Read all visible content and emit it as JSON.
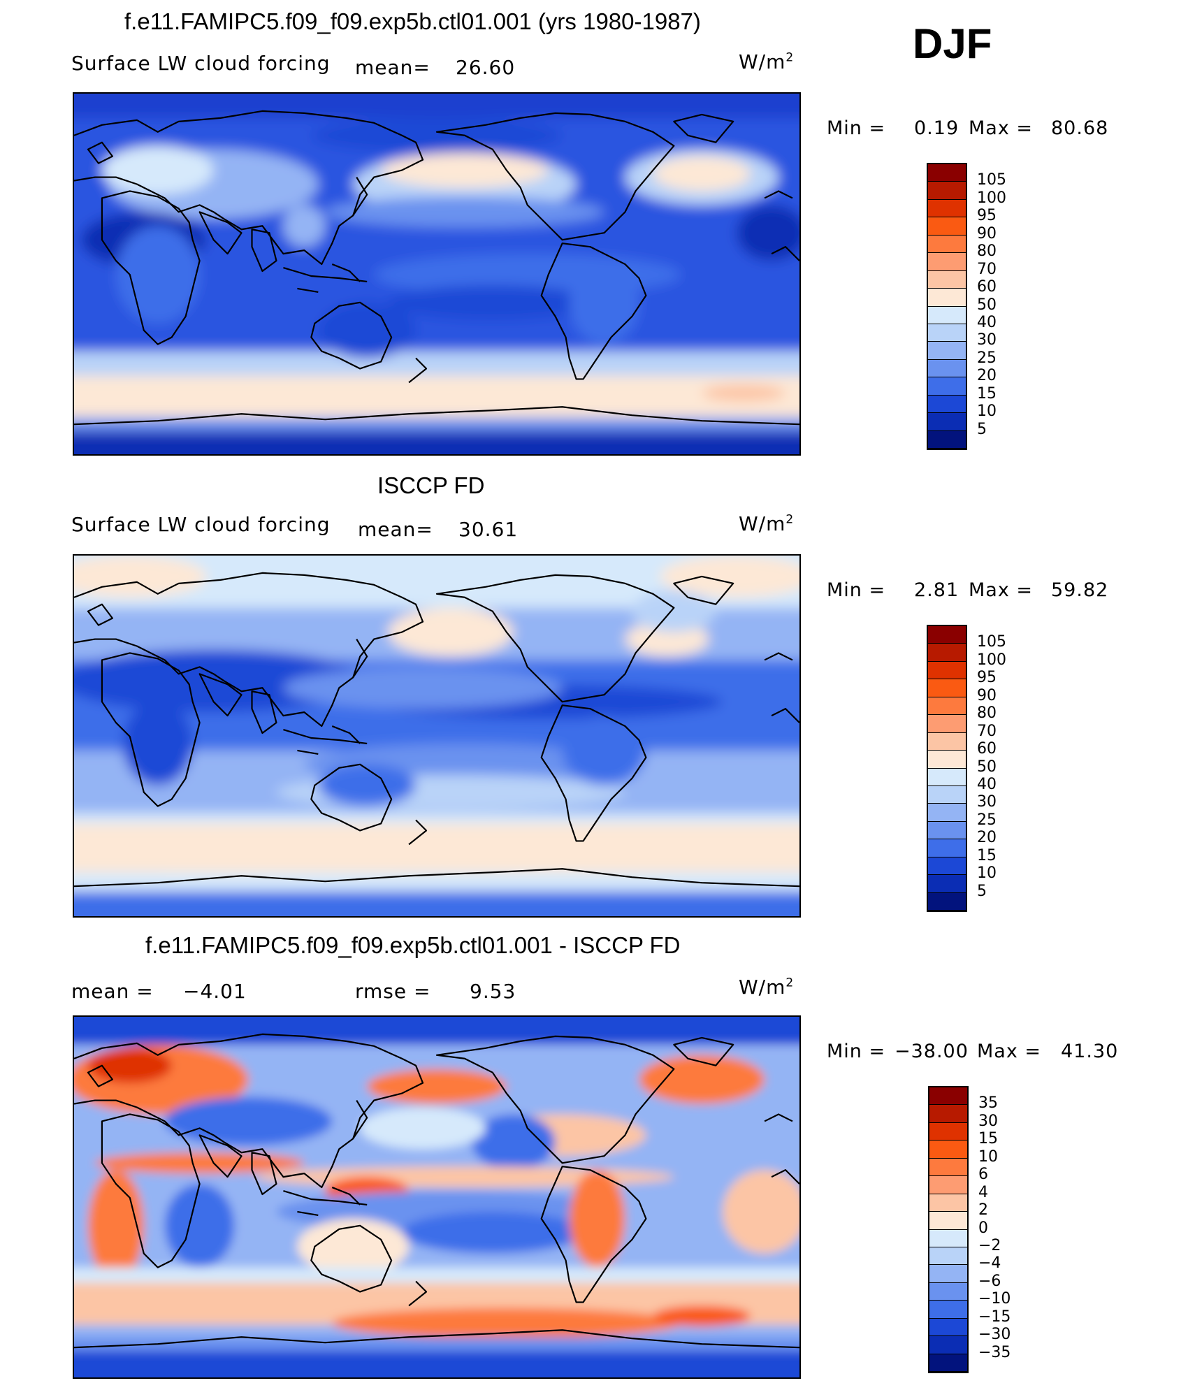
{
  "header": {
    "season": "DJF"
  },
  "panels": [
    {
      "title": "f.e11.FAMIPC5.f09_f09.exp5b.ctl01.001 (yrs 1980-1987)",
      "variable": "Surface LW cloud forcing",
      "mean_label": "mean=",
      "mean_value": "26.60",
      "units_base": "W/m",
      "units_exp": "2",
      "min_label": "Min  =",
      "min_value": "0.19",
      "max_label": "Max  =",
      "max_value": "80.68",
      "colorbar_levels": [
        "105",
        "100",
        "95",
        "90",
        "80",
        "70",
        "60",
        "50",
        "40",
        "30",
        "25",
        "20",
        "15",
        "10",
        "5"
      ],
      "colorbar_colors": [
        "#8a0000",
        "#b71a00",
        "#df3200",
        "#fa5a12",
        "#fd7a3e",
        "#fd9c72",
        "#fcc5a5",
        "#fde8d6",
        "#d6e9fb",
        "#b9d3f8",
        "#94b4f4",
        "#6a92ef",
        "#3e6ee9",
        "#1c48d6",
        "#0b2db4",
        "#02137d"
      ]
    },
    {
      "title": "ISCCP FD",
      "variable": "Surface LW cloud forcing",
      "mean_label": "mean=",
      "mean_value": "30.61",
      "units_base": "W/m",
      "units_exp": "2",
      "min_label": "Min  =",
      "min_value": "2.81",
      "max_label": "Max  =",
      "max_value": "59.82",
      "colorbar_levels": [
        "105",
        "100",
        "95",
        "90",
        "80",
        "70",
        "60",
        "50",
        "40",
        "30",
        "25",
        "20",
        "15",
        "10",
        "5"
      ],
      "colorbar_colors": [
        "#8a0000",
        "#b71a00",
        "#df3200",
        "#fa5a12",
        "#fd7a3e",
        "#fd9c72",
        "#fcc5a5",
        "#fde8d6",
        "#d6e9fb",
        "#b9d3f8",
        "#94b4f4",
        "#6a92ef",
        "#3e6ee9",
        "#1c48d6",
        "#0b2db4",
        "#02137d"
      ]
    },
    {
      "title": "f.e11.FAMIPC5.f09_f09.exp5b.ctl01.001 - ISCCP FD",
      "mean_label": "mean  =",
      "mean_value": "−4.01",
      "rmse_label": "rmse  =",
      "rmse_value": "9.53",
      "units_base": "W/m",
      "units_exp": "2",
      "min_label": "Min  =",
      "min_value": "−38.00",
      "max_label": "Max  =",
      "max_value": "41.30",
      "colorbar_levels": [
        "35",
        "30",
        "15",
        "10",
        "6",
        "4",
        "2",
        "0",
        "−2",
        "−4",
        "−6",
        "−10",
        "−15",
        "−30",
        "−35"
      ],
      "colorbar_colors": [
        "#8a0000",
        "#b71a00",
        "#df3200",
        "#fa5a12",
        "#fd7a3e",
        "#fd9c72",
        "#fcc5a5",
        "#fde8d6",
        "#d6e9fb",
        "#b9d3f8",
        "#94b4f4",
        "#6a92ef",
        "#3e6ee9",
        "#1c48d6",
        "#0b2db4",
        "#02137d"
      ]
    }
  ]
}
